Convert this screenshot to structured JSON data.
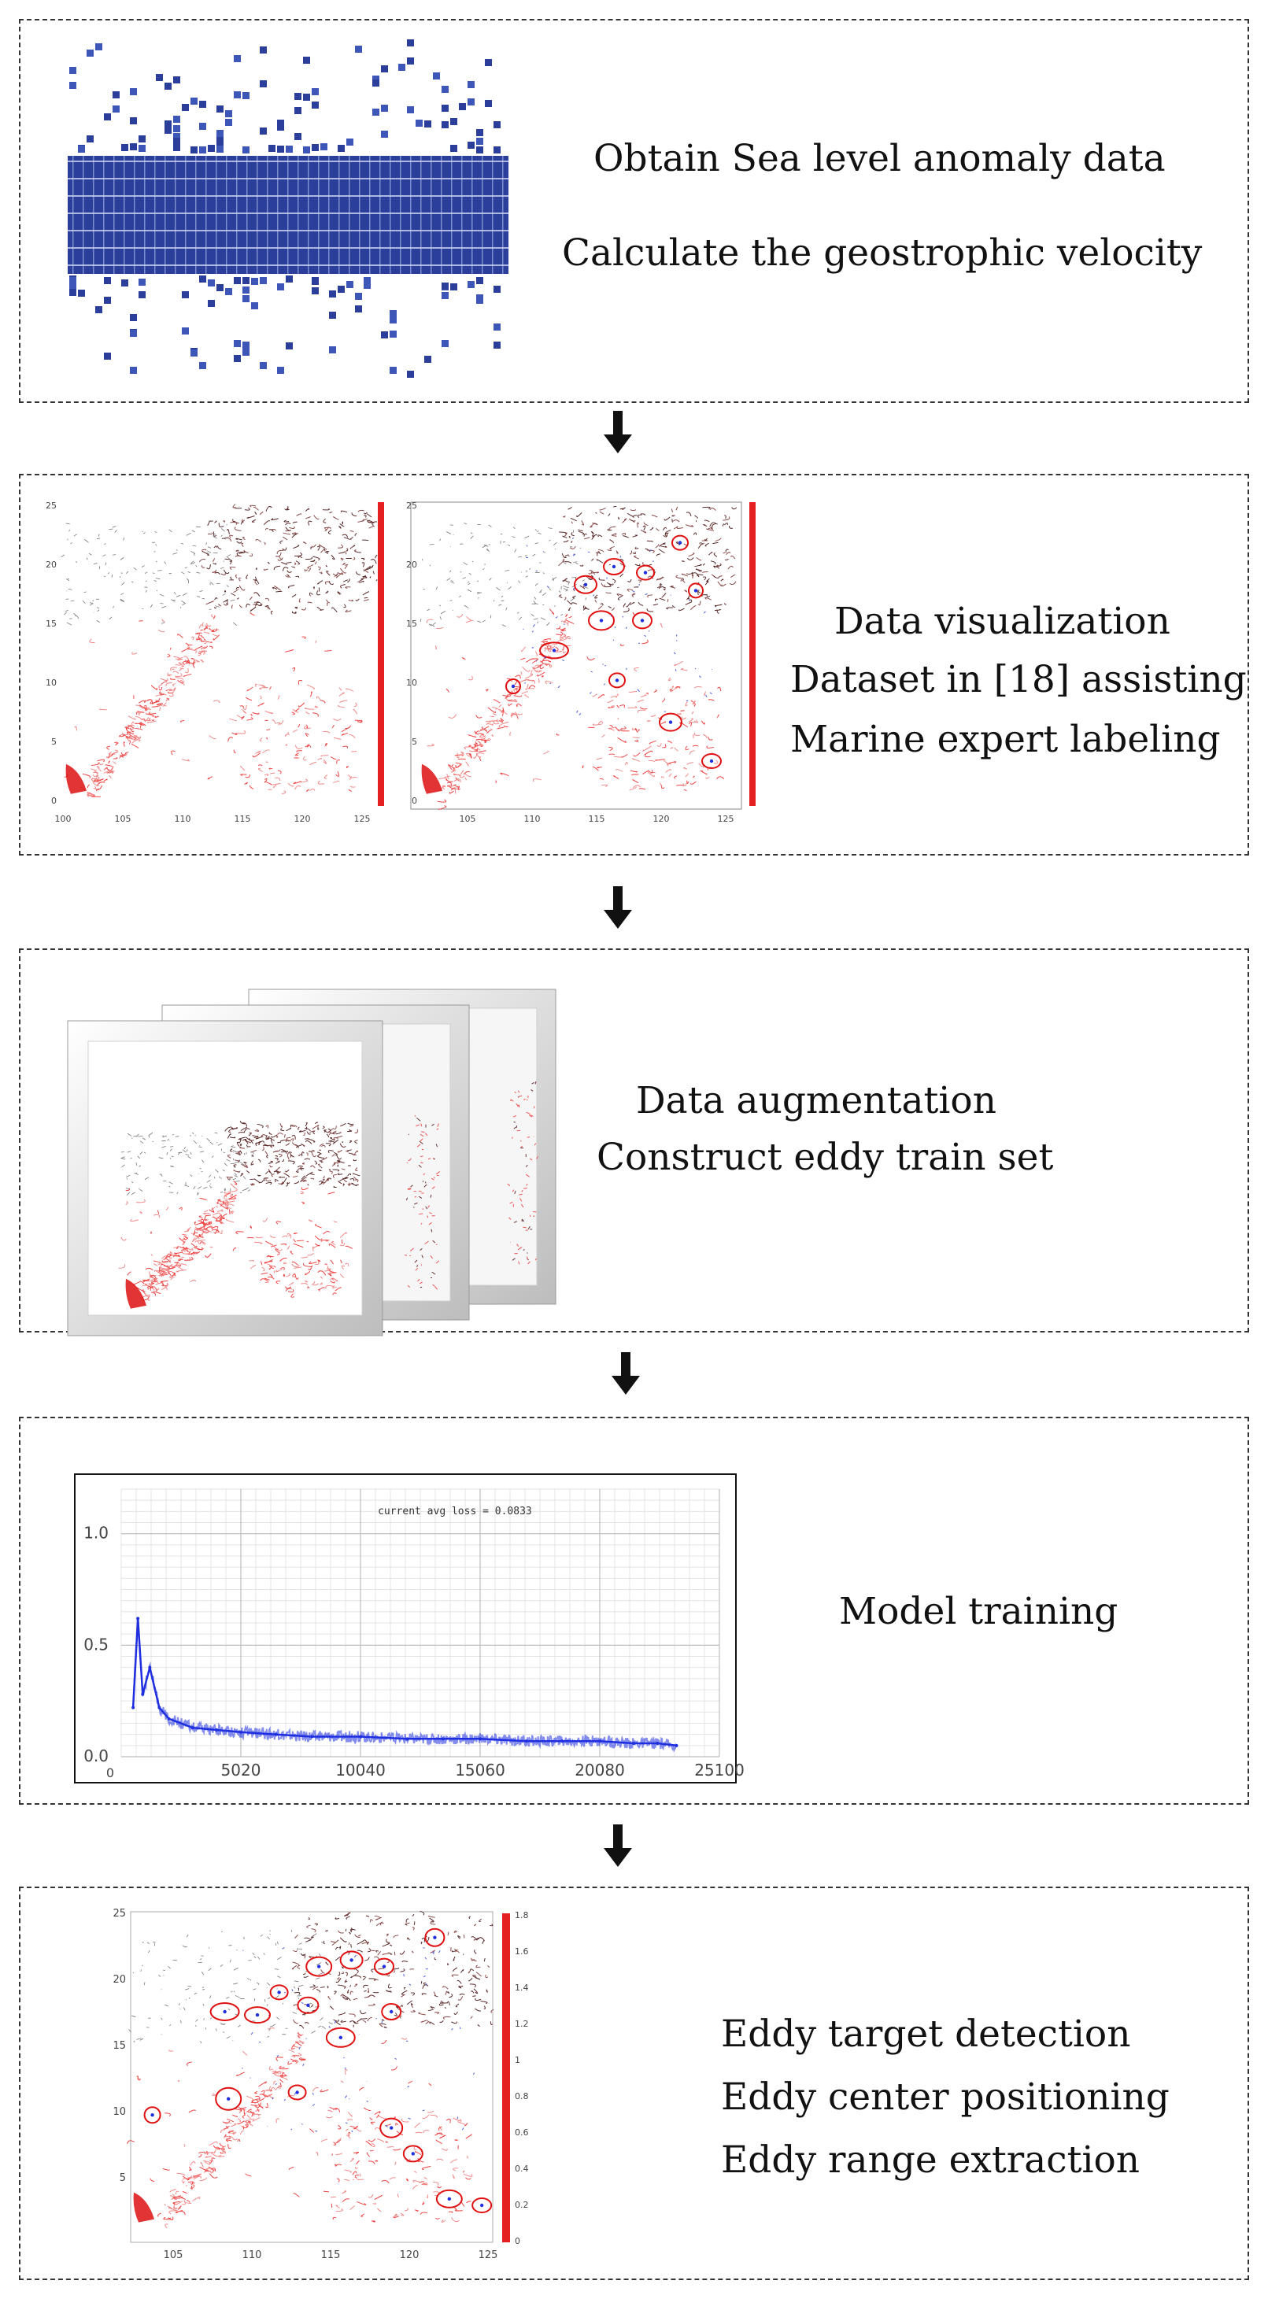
{
  "stages": [
    {
      "id": "s1",
      "lines": [
        "Obtain Sea level anomaly data",
        "Calculate the geostrophic velocity"
      ],
      "figure": "sea-level-data-grid"
    },
    {
      "id": "s2",
      "lines": [
        "Data visualization",
        "Dataset in [18] assisting",
        "Marine expert labeling"
      ],
      "figure": "velocity-maps"
    },
    {
      "id": "s3",
      "lines": [
        "Data augmentation",
        "Construct eddy train set"
      ],
      "figure": "stacked-frames"
    },
    {
      "id": "s4",
      "lines": [
        "Model training"
      ],
      "figure": "loss-curve"
    },
    {
      "id": "s5",
      "lines": [
        "Eddy target detection",
        "Eddy center positioning",
        "Eddy range extraction"
      ],
      "figure": "detection-map"
    }
  ],
  "map_small": {
    "left": {
      "y_ticks": [
        "25",
        "20",
        "15",
        "10",
        "5",
        "0"
      ],
      "x_ticks": [
        "100",
        "105",
        "110",
        "115",
        "120",
        "125"
      ]
    },
    "right": {
      "y_ticks": [
        "25",
        "20",
        "15",
        "10",
        "5",
        "0"
      ],
      "x_ticks": [
        "105",
        "110",
        "115",
        "120",
        "125"
      ]
    }
  },
  "detection_map": {
    "y_ticks": [
      "25",
      "20",
      "15",
      "10",
      "5"
    ],
    "x_ticks": [
      "105",
      "110",
      "115",
      "120",
      "125"
    ],
    "colorbar_ticks": [
      "1.8",
      "1.6",
      "1.4",
      "1.2",
      "1",
      "0.8",
      "0.6",
      "0.4",
      "0.2",
      "0"
    ]
  },
  "colors": {
    "dashed_border": "#333333",
    "grid_blue": "#2b3f9a",
    "map_red": "#e02020",
    "loss_blue": "#1f2fe0"
  },
  "chart_data": {
    "type": "line",
    "title": "current avg loss = 0.0833",
    "x": [
      500,
      700,
      900,
      1200,
      1600,
      2000,
      3000,
      4000,
      5020,
      6500,
      8000,
      10040,
      12000,
      13500,
      15060,
      17000,
      18500,
      20080,
      21500,
      22500,
      23300
    ],
    "y": [
      0.22,
      0.62,
      0.28,
      0.4,
      0.22,
      0.17,
      0.13,
      0.12,
      0.11,
      0.1,
      0.09,
      0.09,
      0.08,
      0.08,
      0.08,
      0.07,
      0.07,
      0.07,
      0.06,
      0.06,
      0.05
    ],
    "xlim": [
      0,
      25100
    ],
    "ylim": [
      0,
      1.2
    ],
    "x_ticks": [
      "5020",
      "10040",
      "15060",
      "20080",
      "25100"
    ],
    "y_ticks": [
      "1.0",
      "0.5",
      "0.0"
    ],
    "origin_label": "0",
    "grid": true
  }
}
